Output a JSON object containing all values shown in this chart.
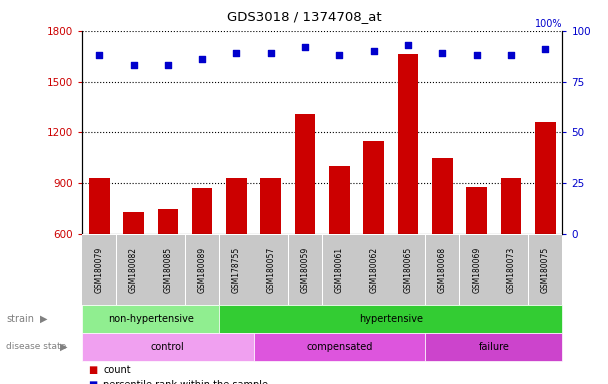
{
  "title": "GDS3018 / 1374708_at",
  "samples": [
    "GSM180079",
    "GSM180082",
    "GSM180085",
    "GSM180089",
    "GSM178755",
    "GSM180057",
    "GSM180059",
    "GSM180061",
    "GSM180062",
    "GSM180065",
    "GSM180068",
    "GSM180069",
    "GSM180073",
    "GSM180075"
  ],
  "counts": [
    930,
    730,
    750,
    870,
    930,
    930,
    1310,
    1000,
    1150,
    1660,
    1050,
    880,
    930,
    1260
  ],
  "percentile_ranks": [
    88,
    83,
    83,
    86,
    89,
    89,
    92,
    88,
    90,
    93,
    89,
    88,
    88,
    91
  ],
  "ylim_left": [
    600,
    1800
  ],
  "ylim_right": [
    0,
    100
  ],
  "yticks_left": [
    600,
    900,
    1200,
    1500,
    1800
  ],
  "yticks_right": [
    0,
    25,
    50,
    75,
    100
  ],
  "bar_color": "#cc0000",
  "dot_color": "#0000cc",
  "strain_groups": [
    {
      "label": "non-hypertensive",
      "start": 0,
      "end": 4,
      "color": "#90ee90"
    },
    {
      "label": "hypertensive",
      "start": 4,
      "end": 14,
      "color": "#33cc33"
    }
  ],
  "disease_groups": [
    {
      "label": "control",
      "start": 0,
      "end": 5,
      "color": "#f0a0f0"
    },
    {
      "label": "compensated",
      "start": 5,
      "end": 10,
      "color": "#dd55dd"
    },
    {
      "label": "failure",
      "start": 10,
      "end": 14,
      "color": "#cc44cc"
    }
  ],
  "background_color": "#ffffff",
  "tick_area_color": "#c8c8c8",
  "grid_color": "#000000"
}
